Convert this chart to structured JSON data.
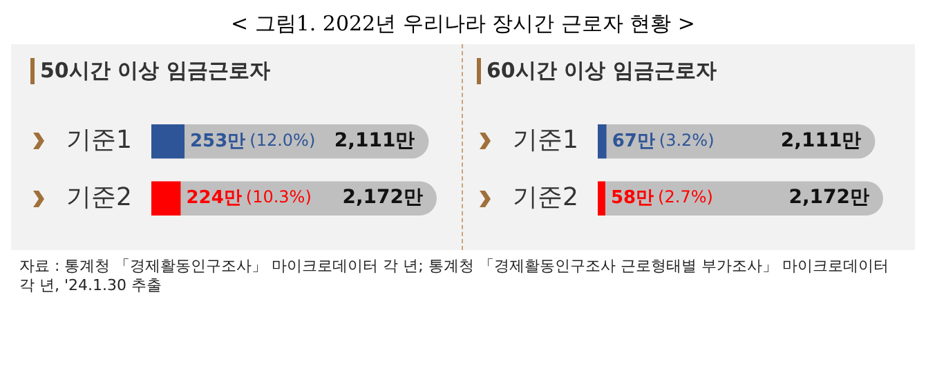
{
  "chart_data": [
    {
      "type": "bar",
      "title": "< 그림1. 2022년 우리나라 장시간 근로자 현황 >",
      "subtitle": "50시간 이상 임금근로자",
      "orientation": "horizontal",
      "stacked": true,
      "tick_labels": "y",
      "categories": [
        "기준1",
        "기준2"
      ],
      "series": [
        {
          "colors": [
            "#2e5597",
            "#ff0000"
          ],
          "values": [
            253,
            224
          ],
          "value_labels": [
            "253만",
            "224만"
          ]
        },
        {
          "color": "#bfbfbf",
          "values": [
            1858,
            1948
          ]
        }
      ],
      "totals": [
        "2,111만",
        "2,172만"
      ],
      "annotations": [
        "(12.0%)",
        "(10.3%)"
      ]
    },
    {
      "type": "bar",
      "subtitle": "60시간 이상 임금근로자",
      "orientation": "horizontal",
      "stacked": true,
      "tick_labels": "y",
      "categories": [
        "기준1",
        "기준2"
      ],
      "series": [
        {
          "colors": [
            "#2e5597",
            "#ff0000"
          ],
          "values": [
            67,
            58
          ],
          "value_labels": [
            "67만",
            "58만"
          ]
        },
        {
          "color": "#bfbfbf",
          "values": [
            2044,
            2114
          ]
        }
      ],
      "totals": [
        "2,111만",
        "2,172만"
      ],
      "annotations": [
        "(3.2%)",
        "(2.7%)",
        "자료 : 통계청 「경제활동인구조사」 마이크로데이터 각 년; 통계청 「경제활동인구조사 근로형태별 부가조사」 마이크로데이터 각 년, '24.1.30 추출"
      ]
    }
  ]
}
